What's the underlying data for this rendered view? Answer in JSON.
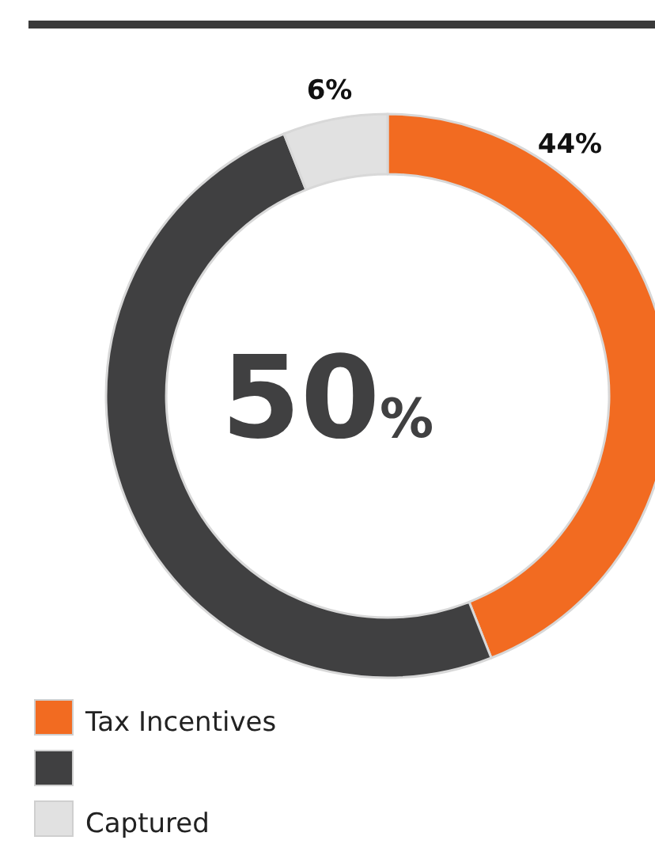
{
  "chart_data": {
    "type": "donut",
    "categories": [
      "Tax Incentives",
      null,
      "Captured"
    ],
    "values": [
      44,
      50,
      6
    ],
    "colors": [
      "#f26b21",
      "#404041",
      "#e1e1e1"
    ],
    "value_labels": [
      "44%",
      null,
      "6%"
    ],
    "annotations": [
      "50%"
    ],
    "legend": "bottom left"
  }
}
